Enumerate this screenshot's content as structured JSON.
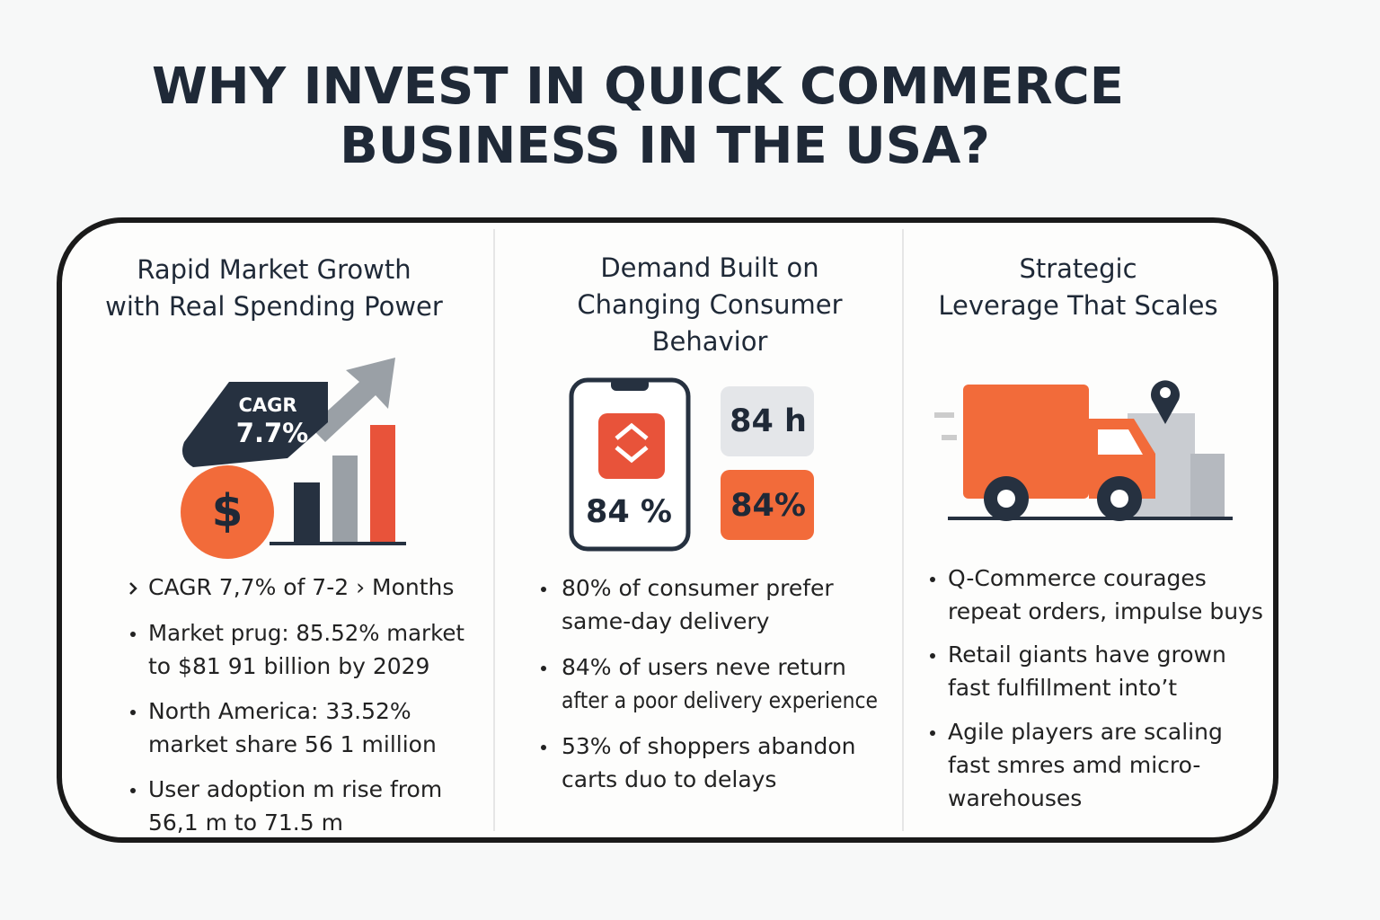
{
  "title": [
    "WHY INVEST IN QUICK COMMERCE",
    "BUSINESS IN THE USA?"
  ],
  "columns": [
    {
      "heading": [
        "Rapid Market Growth",
        "with Real Spending Power"
      ],
      "icon_texts": [
        "CAGR",
        "7.7%",
        "$"
      ],
      "bullets": [
        [
          "CAGR 7,7% of 7-2 › Months"
        ],
        [
          "Market prug: 85.52% market",
          "to $81 91 billion by 2029"
        ],
        [
          "North America: 33.52%",
          "market share 56 1 million"
        ],
        [
          "User adoption m rise from",
          "56,1 m to 71.5 m"
        ]
      ]
    },
    {
      "heading": [
        "Demand Built on",
        "Changing Consumer",
        "Behavior"
      ],
      "icon_texts": [
        "84 %",
        "84 h",
        "84%"
      ],
      "bullets": [
        [
          "80% of consumer prefer",
          "same-day delivery"
        ],
        [
          "84% of users neve return",
          "after a poor delivery experience"
        ],
        [
          "53% of shoppers abandon",
          "carts duo to delays"
        ]
      ]
    },
    {
      "heading": [
        "Strategic",
        "Leverage That Scales"
      ],
      "bullets": [
        [
          "Q-Commerce courages",
          "repeat orders, impulse buys"
        ],
        [
          "Retail giants have grown",
          "fast fulfillment into’t"
        ],
        [
          "Agile players are scaling",
          "fast smres amd micro-",
          "warehouses"
        ]
      ]
    }
  ]
}
